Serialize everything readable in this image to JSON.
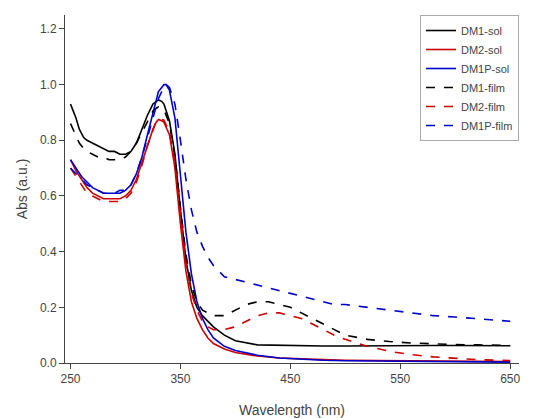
{
  "chart_data": {
    "type": "line",
    "xlabel": "Wavelength (nm)",
    "ylabel": "Abs (a.u.)",
    "xlim": [
      245,
      658
    ],
    "ylim": [
      0,
      1.25
    ],
    "xticks": [
      250,
      350,
      450,
      550,
      650
    ],
    "yticks": [
      {
        "value": 0,
        "label": "0.0"
      },
      0.2,
      0.4,
      0.6,
      0.8,
      {
        "value": 1.0,
        "label": "1.0"
      },
      1.2
    ],
    "grid": false,
    "legend": "upper right",
    "series": [
      {
        "name": "DM1-sol",
        "color": "#000000",
        "line_style": "solid",
        "x": [
          250,
          255,
          258,
          262,
          265,
          270,
          275,
          280,
          285,
          290,
          295,
          300,
          305,
          310,
          315,
          320,
          325,
          328,
          330,
          333,
          335,
          340,
          345,
          350,
          355,
          360,
          365,
          370,
          375,
          380,
          390,
          400,
          420,
          440,
          460,
          480,
          500,
          520,
          540,
          560,
          580,
          600,
          620,
          640,
          650
        ],
        "values": [
          0.93,
          0.88,
          0.84,
          0.81,
          0.8,
          0.79,
          0.78,
          0.77,
          0.76,
          0.76,
          0.75,
          0.75,
          0.76,
          0.79,
          0.84,
          0.89,
          0.93,
          0.94,
          0.945,
          0.94,
          0.93,
          0.87,
          0.75,
          0.55,
          0.37,
          0.26,
          0.2,
          0.17,
          0.15,
          0.13,
          0.1,
          0.08,
          0.065,
          0.063,
          0.062,
          0.061,
          0.061,
          0.062,
          0.063,
          0.063,
          0.063,
          0.063,
          0.063,
          0.062,
          0.062
        ]
      },
      {
        "name": "DM2-sol",
        "color": "#cc0000",
        "line_style": "solid",
        "x": [
          250,
          255,
          260,
          265,
          270,
          275,
          280,
          285,
          290,
          295,
          300,
          305,
          310,
          315,
          320,
          325,
          328,
          330,
          333,
          335,
          340,
          345,
          350,
          355,
          360,
          365,
          370,
          375,
          380,
          390,
          400,
          420,
          440,
          460,
          480,
          500,
          520,
          540,
          560,
          580,
          600,
          620,
          640,
          650
        ],
        "values": [
          0.73,
          0.69,
          0.66,
          0.63,
          0.61,
          0.6,
          0.59,
          0.59,
          0.59,
          0.59,
          0.6,
          0.62,
          0.66,
          0.72,
          0.78,
          0.84,
          0.865,
          0.875,
          0.87,
          0.865,
          0.82,
          0.7,
          0.5,
          0.33,
          0.22,
          0.16,
          0.12,
          0.09,
          0.07,
          0.05,
          0.038,
          0.025,
          0.018,
          0.014,
          0.012,
          0.01,
          0.009,
          0.008,
          0.007,
          0.006,
          0.006,
          0.005,
          0.005,
          0.005
        ]
      },
      {
        "name": "DM1P-sol",
        "color": "#0000cc",
        "line_style": "solid",
        "x": [
          250,
          255,
          260,
          265,
          270,
          275,
          280,
          285,
          290,
          295,
          300,
          305,
          310,
          315,
          320,
          325,
          328,
          330,
          333,
          335,
          337,
          340,
          345,
          350,
          355,
          360,
          365,
          370,
          375,
          380,
          390,
          400,
          420,
          440,
          460,
          480,
          500,
          520,
          540,
          560,
          580,
          600,
          620,
          640,
          650
        ],
        "values": [
          0.73,
          0.7,
          0.67,
          0.65,
          0.63,
          0.62,
          0.61,
          0.61,
          0.61,
          0.61,
          0.62,
          0.64,
          0.68,
          0.74,
          0.82,
          0.9,
          0.95,
          0.975,
          0.99,
          1.0,
          1.0,
          0.98,
          0.88,
          0.68,
          0.47,
          0.32,
          0.22,
          0.16,
          0.12,
          0.09,
          0.06,
          0.045,
          0.028,
          0.018,
          0.013,
          0.01,
          0.008,
          0.007,
          0.006,
          0.005,
          0.005,
          0.004,
          0.004,
          0.003,
          0.003
        ]
      },
      {
        "name": "DM1-film",
        "color": "#000000",
        "line_style": "dashed",
        "x": [
          250,
          255,
          258,
          262,
          265,
          270,
          275,
          280,
          285,
          290,
          295,
          300,
          305,
          310,
          315,
          320,
          325,
          328,
          330,
          333,
          335,
          340,
          345,
          350,
          355,
          360,
          365,
          370,
          375,
          380,
          390,
          400,
          410,
          420,
          430,
          440,
          450,
          460,
          470,
          480,
          490,
          500,
          520,
          540,
          560,
          580,
          600,
          620,
          640,
          650
        ],
        "values": [
          0.86,
          0.82,
          0.79,
          0.77,
          0.76,
          0.75,
          0.74,
          0.74,
          0.73,
          0.73,
          0.73,
          0.74,
          0.76,
          0.79,
          0.83,
          0.87,
          0.905,
          0.915,
          0.92,
          0.915,
          0.91,
          0.86,
          0.74,
          0.56,
          0.39,
          0.28,
          0.22,
          0.19,
          0.18,
          0.17,
          0.17,
          0.19,
          0.21,
          0.22,
          0.22,
          0.21,
          0.2,
          0.18,
          0.16,
          0.14,
          0.12,
          0.1,
          0.085,
          0.077,
          0.072,
          0.068,
          0.066,
          0.065,
          0.064,
          0.063
        ]
      },
      {
        "name": "DM2-film",
        "color": "#cc0000",
        "line_style": "dashed",
        "x": [
          250,
          255,
          260,
          265,
          270,
          275,
          280,
          285,
          290,
          295,
          300,
          305,
          310,
          315,
          320,
          325,
          328,
          330,
          333,
          335,
          340,
          345,
          350,
          355,
          360,
          365,
          370,
          375,
          380,
          390,
          400,
          410,
          420,
          430,
          440,
          450,
          460,
          470,
          480,
          490,
          500,
          520,
          540,
          560,
          580,
          600,
          620,
          640,
          650
        ],
        "values": [
          0.7,
          0.67,
          0.64,
          0.61,
          0.6,
          0.59,
          0.58,
          0.58,
          0.58,
          0.58,
          0.59,
          0.61,
          0.65,
          0.71,
          0.78,
          0.84,
          0.87,
          0.875,
          0.875,
          0.872,
          0.83,
          0.72,
          0.53,
          0.36,
          0.25,
          0.19,
          0.15,
          0.13,
          0.12,
          0.12,
          0.13,
          0.15,
          0.17,
          0.18,
          0.18,
          0.17,
          0.16,
          0.14,
          0.12,
          0.1,
          0.085,
          0.06,
          0.042,
          0.03,
          0.022,
          0.016,
          0.012,
          0.01,
          0.009
        ]
      },
      {
        "name": "DM1P-film",
        "color": "#0000cc",
        "line_style": "dashed",
        "x": [
          250,
          255,
          260,
          265,
          270,
          275,
          280,
          285,
          290,
          295,
          300,
          305,
          310,
          315,
          320,
          325,
          328,
          330,
          333,
          335,
          337,
          340,
          345,
          350,
          355,
          360,
          365,
          370,
          375,
          380,
          390,
          400,
          410,
          420,
          430,
          440,
          450,
          460,
          470,
          480,
          490,
          500,
          520,
          540,
          560,
          580,
          600,
          620,
          640,
          650
        ],
        "values": [
          0.7,
          0.68,
          0.66,
          0.64,
          0.63,
          0.62,
          0.61,
          0.61,
          0.61,
          0.62,
          0.62,
          0.64,
          0.68,
          0.74,
          0.81,
          0.88,
          0.92,
          0.95,
          0.975,
          0.99,
          1.0,
          0.99,
          0.93,
          0.8,
          0.66,
          0.55,
          0.47,
          0.42,
          0.38,
          0.35,
          0.31,
          0.3,
          0.29,
          0.28,
          0.27,
          0.26,
          0.25,
          0.24,
          0.23,
          0.22,
          0.21,
          0.21,
          0.2,
          0.19,
          0.18,
          0.17,
          0.165,
          0.16,
          0.155,
          0.15
        ]
      }
    ]
  }
}
